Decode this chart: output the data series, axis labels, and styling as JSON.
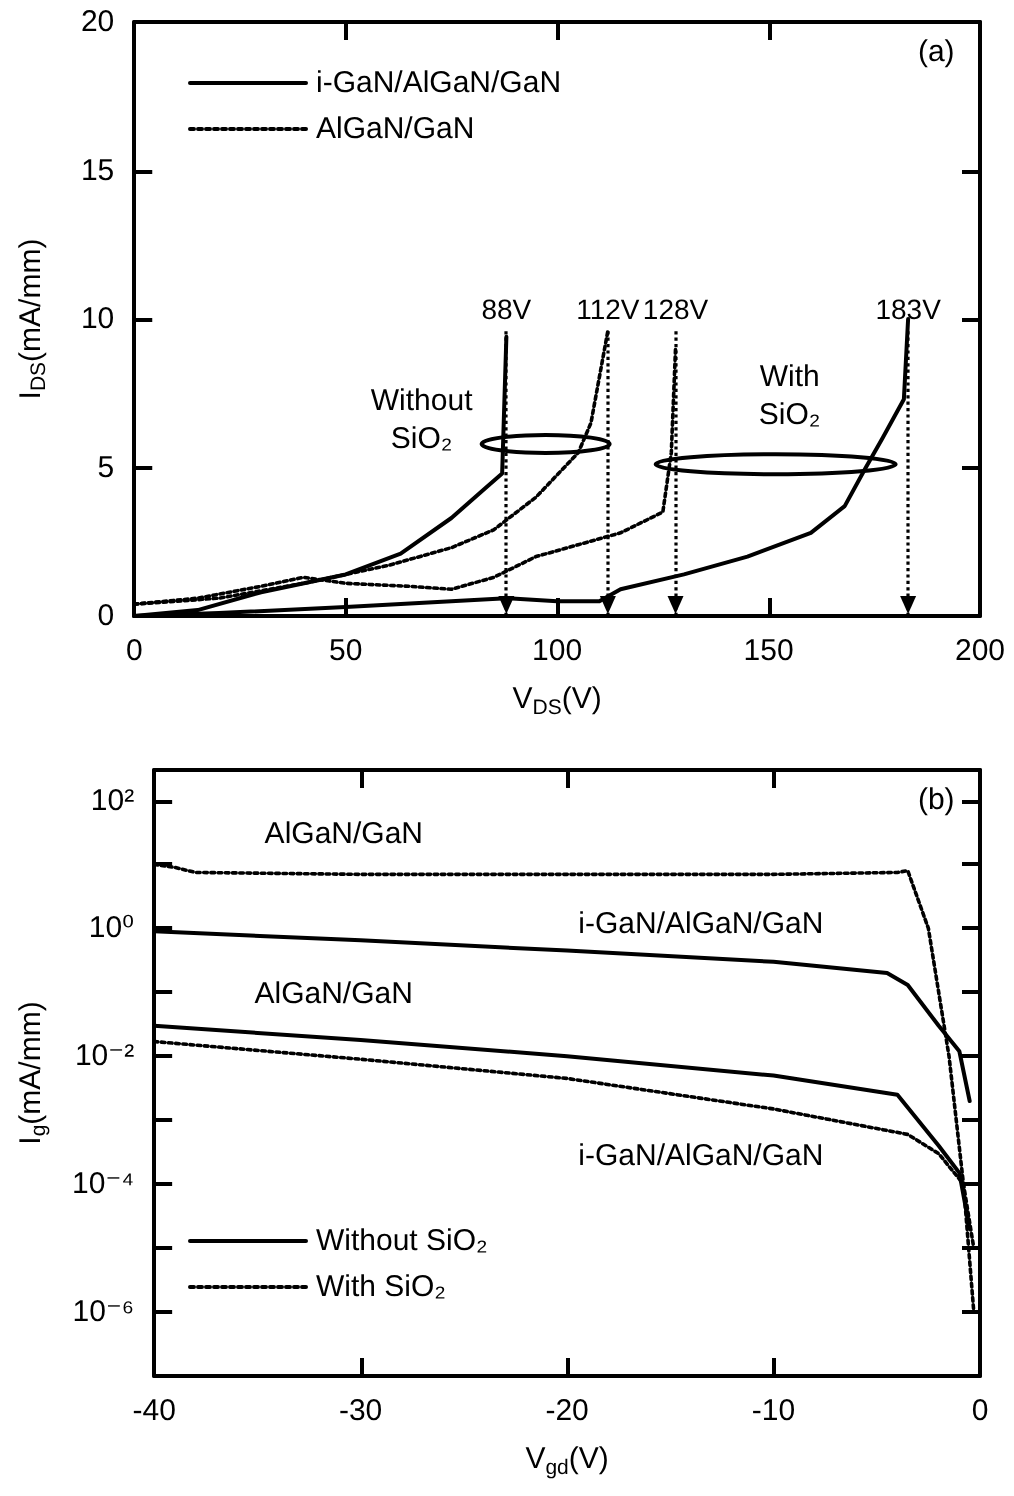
{
  "chart_data": [
    {
      "type": "line",
      "xlabel": "V$_{DS}$(V)",
      "ylabel": "I$_{DS}$(mA/mm)",
      "xlim": [
        0,
        200
      ],
      "ylim": [
        0,
        20
      ],
      "xticks": [
        0,
        50,
        100,
        150,
        200
      ],
      "yticks": [
        0,
        5,
        10,
        15,
        20
      ],
      "legend": "top left",
      "marker": "none",
      "series": [
        {
          "name": "i-GaN/AlGaN/GaN",
          "color": "#000000",
          "line_style": "solid",
          "x": [
            0,
            15,
            30,
            50,
            63,
            75,
            83,
            87,
            88
          ],
          "values": [
            0,
            0.2,
            0.8,
            1.4,
            2.1,
            3.3,
            4.3,
            4.8,
            9.4
          ]
        },
        {
          "color": "#000000",
          "line_style": "solid",
          "x": [
            0,
            20,
            50,
            88,
            100,
            110,
            115,
            130,
            145,
            160,
            168,
            173,
            177,
            182,
            183
          ],
          "values": [
            0,
            0.1,
            0.3,
            0.6,
            0.5,
            0.5,
            0.9,
            1.4,
            2.0,
            2.8,
            3.7,
            5.0,
            6.0,
            7.3,
            10.0
          ]
        },
        {
          "name": "AlGaN/GaN",
          "color": "#000000",
          "line_style": "dotted",
          "x": [
            0,
            20,
            40,
            60,
            75,
            85,
            95,
            105,
            108,
            112
          ],
          "values": [
            0.4,
            0.6,
            1.1,
            1.7,
            2.3,
            2.9,
            4.0,
            5.5,
            6.5,
            9.6
          ]
        },
        {
          "color": "#000000",
          "line_style": "dotted",
          "x": [
            0,
            15,
            30,
            40,
            50,
            65,
            75,
            85,
            95,
            105,
            115,
            125,
            127,
            128
          ],
          "values": [
            0.4,
            0.6,
            1.0,
            1.3,
            1.1,
            1.0,
            0.9,
            1.3,
            2.0,
            2.4,
            2.8,
            3.5,
            5.5,
            9.0
          ]
        }
      ],
      "ref_lines": [
        {
          "axis": "x",
          "value": 88,
          "label": "88V",
          "color": "#000000",
          "line_style": "dotted"
        },
        {
          "axis": "x",
          "value": 112,
          "label": "112V",
          "color": "#000000",
          "line_style": "dotted"
        },
        {
          "axis": "x",
          "value": 128,
          "label": "128V",
          "color": "#000000",
          "line_style": "dotted"
        },
        {
          "axis": "x",
          "value": 183,
          "label": "183V",
          "color": "#000000",
          "line_style": "dotted"
        }
      ],
      "annotations": [
        "(a)",
        "Without\nSiO₂",
        "With\nSiO₂"
      ]
    },
    {
      "type": "line",
      "xlabel": "V$_{gd}$(V)",
      "ylabel": "I$_{g}$(mA/mm)",
      "xlim": [
        -40,
        0
      ],
      "ylim": [
        1e-07,
        300
      ],
      "xticks": [
        -40,
        -30,
        -20,
        -10,
        0
      ],
      "yticks": [
        {
          "value": 1e-06,
          "label": "10⁻⁶"
        },
        {
          "value": 1e-05,
          "label": null
        },
        {
          "value": 0.0001,
          "label": "10⁻⁴"
        },
        {
          "value": 0.001,
          "label": null
        },
        {
          "value": 0.01,
          "label": "10⁻²"
        },
        {
          "value": 0.1,
          "label": null
        },
        {
          "value": 1,
          "label": "10⁰"
        },
        {
          "value": 10,
          "label": null
        },
        {
          "value": 100,
          "label": "10²"
        }
      ],
      "log": "y",
      "legend": "bottom left",
      "marker": "none",
      "series": [
        {
          "name": "Without SiO₂",
          "color": "#000000",
          "line_style": "solid",
          "x": [
            -40,
            -30,
            -20,
            -10,
            -4.5,
            -3.5,
            -2,
            -1,
            -0.5
          ],
          "values": [
            0.9,
            0.65,
            0.45,
            0.3,
            0.2,
            0.13,
            0.03,
            0.012,
            0.002
          ]
        },
        {
          "color": "#000000",
          "line_style": "solid",
          "x": [
            -40,
            -30,
            -20,
            -10,
            -4,
            -2,
            -1,
            -0.5
          ],
          "values": [
            0.03,
            0.018,
            0.01,
            0.005,
            0.0025,
            0.0004,
            0.00015,
            2e-05
          ]
        },
        {
          "name": "With SiO₂",
          "color": "#000000",
          "line_style": "dotted",
          "x": [
            -40,
            -39,
            -38,
            -30,
            -20,
            -10,
            -4,
            -3.5,
            -2.5,
            -1.5,
            -0.8,
            -0.3
          ],
          "values": [
            10,
            9,
            7.5,
            7,
            7,
            7,
            7.5,
            8,
            1,
            0.01,
            0.0001,
            1e-06
          ]
        },
        {
          "color": "#000000",
          "line_style": "dotted",
          "x": [
            -40,
            -30,
            -20,
            -10,
            -3.5,
            -2,
            -0.8,
            -0.3
          ],
          "values": [
            0.017,
            0.009,
            0.0045,
            0.0015,
            0.0006,
            0.0003,
            0.0001,
            1e-05
          ]
        }
      ],
      "annotations": [
        "(b)",
        "AlGaN/GaN",
        "i-GaN/AlGaN/GaN",
        "AlGaN/GaN",
        "i-GaN/AlGaN/GaN"
      ]
    }
  ]
}
